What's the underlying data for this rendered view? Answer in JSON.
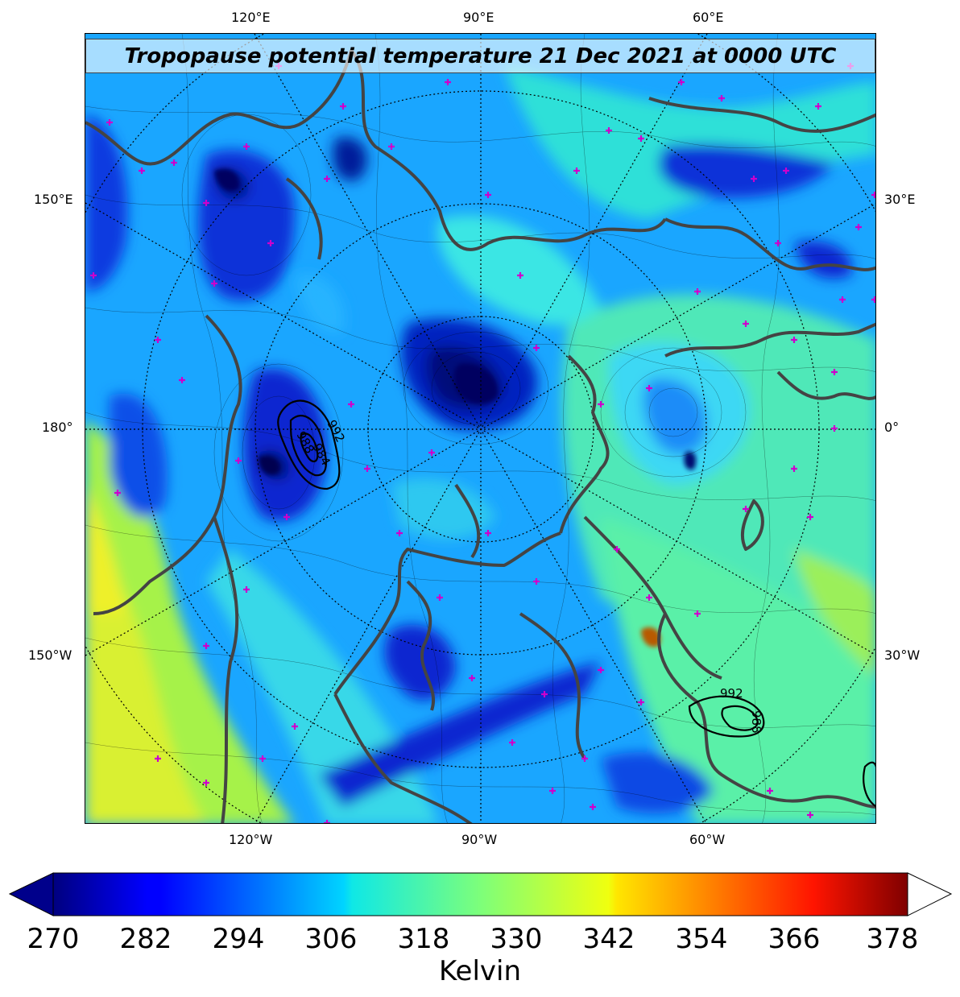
{
  "title": "Tropopause potential temperature 21 Dec 2021 at 0000 UTC",
  "longitude_labels": {
    "top": [
      "120°E",
      "90°E",
      "60°E"
    ],
    "bottom": [
      "120°W",
      "90°W",
      "60°W"
    ],
    "left": [
      "150°E",
      "180°",
      "150°W"
    ],
    "right": [
      "30°E",
      "0°",
      "30°W"
    ]
  },
  "pressure_contour_labels": [
    "992",
    "988",
    "984",
    "992",
    "988"
  ],
  "colorbar": {
    "min": 270,
    "max": 378,
    "ticks": [
      "270",
      "282",
      "294",
      "306",
      "318",
      "330",
      "342",
      "354",
      "366",
      "378"
    ],
    "label": "Kelvin",
    "colormap": "jet",
    "extend": "both",
    "over_color": "#ffffff",
    "under_color": "#00008b"
  },
  "colors": {
    "coastline": "#444444",
    "marker": "#cc00cc",
    "contour": "#000000"
  },
  "icons": [
    "plus-marker-icon"
  ]
}
